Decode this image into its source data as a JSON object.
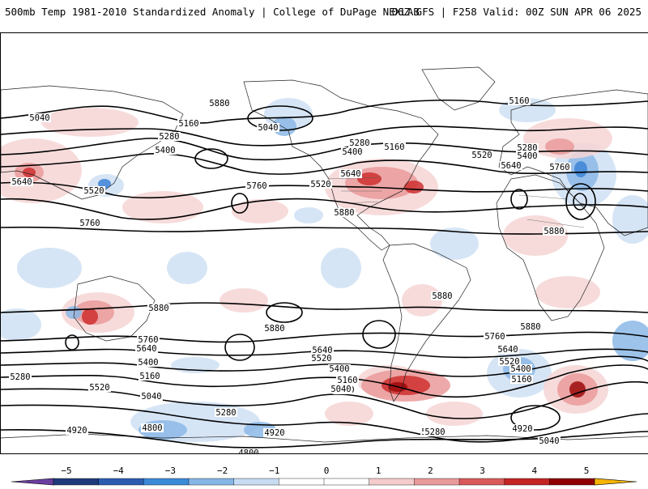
{
  "header": {
    "title_left": "500mb Temp 1981-2010 Standardized Anomaly | College of DuPage NEXLAB",
    "title_right": "06Z GFS | F258 Valid: 00Z SUN APR 06 2025"
  },
  "map": {
    "projection": "global-equirectangular",
    "contour_labels": [
      "5040",
      "5160",
      "5280",
      "5400",
      "5640",
      "5520",
      "5760",
      "5040",
      "5160",
      "5280",
      "5400",
      "5520",
      "5640",
      "5760",
      "5880",
      "5160",
      "5280",
      "5400",
      "5520",
      "5640",
      "5760",
      "5880",
      "5880",
      "5880",
      "5880",
      "5880",
      "5760",
      "5640",
      "5400",
      "5160",
      "5040",
      "5280",
      "5520",
      "4920",
      "4800",
      "5880",
      "5760",
      "5640",
      "5520",
      "5400",
      "5280",
      "5160",
      "5040",
      "5760",
      "5640",
      "5520",
      "5400",
      "5160",
      "5040",
      "5280",
      "4920",
      "4800",
      "4920",
      "5040",
      "5040",
      "4920",
      "5280",
      "5520"
    ],
    "colors": {
      "warm_light": "#f6d5d5",
      "warm_mid": "#ea9a9a",
      "warm_strong": "#cf3030",
      "warm_deep": "#9c0a0a",
      "cold_light": "#cfe0f3",
      "cold_mid": "#8cb8e6",
      "cold_strong": "#3d84d6"
    }
  },
  "colorbar": {
    "ticks": [
      "−5",
      "−4",
      "−3",
      "−2",
      "−1",
      "0",
      "1",
      "2",
      "3",
      "4",
      "5"
    ],
    "segment_colors": [
      "#6a3fa0",
      "#1f3b7a",
      "#2b5cb0",
      "#3b8ad8",
      "#86b6e6",
      "#c7dcf2",
      "#ffffff",
      "#ffffff",
      "#f4cccc",
      "#e89a9a",
      "#d95a5a",
      "#c32424",
      "#8f0000",
      "#f5b400"
    ]
  }
}
